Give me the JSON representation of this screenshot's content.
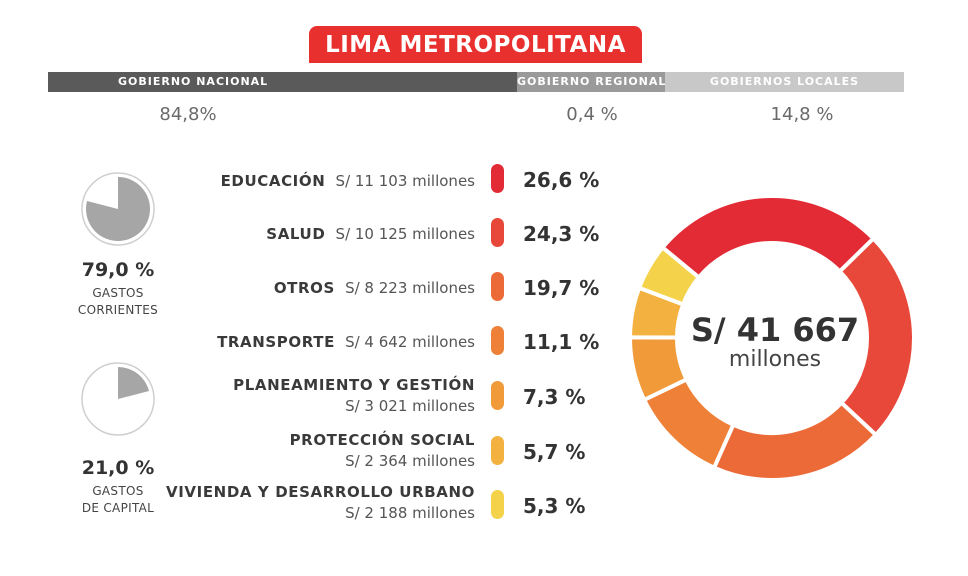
{
  "title": "LIMA METROPOLITANA",
  "government_levels": [
    {
      "label": "GOBIERNO NACIONAL",
      "pct": "84,8%",
      "color": "#5a5a5a"
    },
    {
      "label": "GOBIERNO REGIONAL",
      "pct": "0,4 %",
      "color": "#9a9a9a"
    },
    {
      "label": "GOBIERNOS LOCALES",
      "pct": "14,8 %",
      "color": "#c8c8c8"
    }
  ],
  "spending_types": [
    {
      "pct_label": "79,0 %",
      "label_line1": "GASTOS",
      "label_line2": "CORRIENTES",
      "fraction": 0.79
    },
    {
      "pct_label": "21,0 %",
      "label_line1": "GASTOS",
      "label_line2": "DE CAPITAL",
      "fraction": 0.21
    }
  ],
  "chart_data": {
    "type": "pie",
    "center_value": "S/ 41 667",
    "center_unit": "millones",
    "categories": [
      {
        "name": "EDUCACIÓN",
        "amount": "S/ 11 103 millones",
        "value": 11103,
        "pct": 26.6,
        "pct_label": "26,6 %",
        "color": "#e32b36"
      },
      {
        "name": "SALUD",
        "amount": "S/ 10 125 millones",
        "value": 10125,
        "pct": 24.3,
        "pct_label": "24,3 %",
        "color": "#e8483a"
      },
      {
        "name": "OTROS",
        "amount": "S/ 8 223 millones",
        "value": 8223,
        "pct": 19.7,
        "pct_label": "19,7 %",
        "color": "#ec6a38"
      },
      {
        "name": "TRANSPORTE",
        "amount": "S/ 4 642 millones",
        "value": 4642,
        "pct": 11.1,
        "pct_label": "11,1 %",
        "color": "#ee8137"
      },
      {
        "name": "PLANEAMIENTO Y GESTIÓN",
        "amount": "S/ 3 021 millones",
        "value": 3021,
        "pct": 7.3,
        "pct_label": "7,3 %",
        "color": "#f19a3a"
      },
      {
        "name": "PROTECCIÓN SOCIAL",
        "amount": "S/ 2 364 millones",
        "value": 2364,
        "pct": 5.7,
        "pct_label": "5,7 %",
        "color": "#f3b13f"
      },
      {
        "name": "VIVIENDA Y DESARROLLO URBANO",
        "amount": "S/ 2 188 millones",
        "value": 2188,
        "pct": 5.3,
        "pct_label": "5,3 %",
        "color": "#f4d24a"
      }
    ]
  }
}
